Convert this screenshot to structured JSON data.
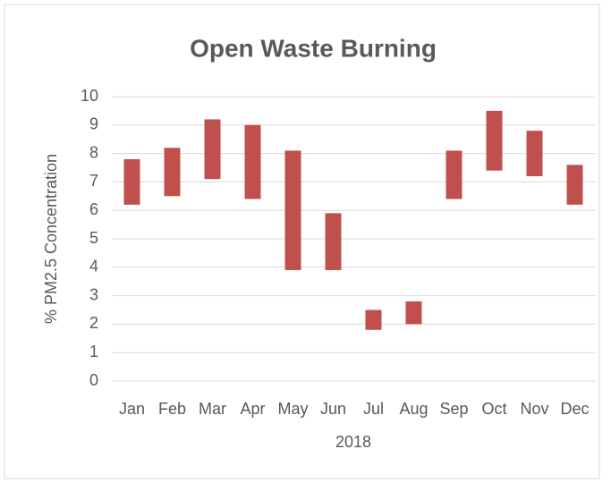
{
  "chart_data": {
    "type": "range_bar",
    "title": "Open Waste Burning",
    "x_label": "2018",
    "y_label": "% PM2.5 Concentration",
    "categories": [
      "Jan",
      "Feb",
      "Mar",
      "Apr",
      "May",
      "Jun",
      "Jul",
      "Aug",
      "Sep",
      "Oct",
      "Nov",
      "Dec"
    ],
    "low": [
      6.2,
      6.5,
      7.1,
      6.4,
      3.9,
      3.9,
      1.8,
      2.0,
      6.4,
      7.4,
      7.2,
      6.2
    ],
    "high": [
      7.8,
      8.2,
      9.2,
      9.0,
      8.1,
      5.9,
      2.5,
      2.8,
      8.1,
      9.5,
      8.8,
      7.6
    ],
    "color": "#c0504d",
    "ylim": [
      0,
      10
    ],
    "yticks": [
      0,
      1,
      2,
      3,
      4,
      5,
      6,
      7,
      8,
      9,
      10
    ],
    "grid": true
  }
}
